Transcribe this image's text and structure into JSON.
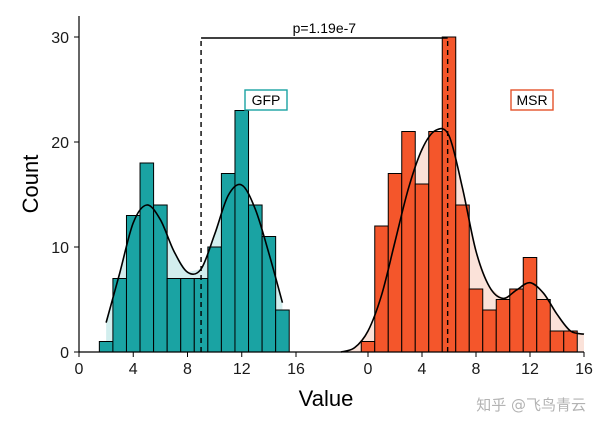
{
  "chart_data": {
    "type": "bar",
    "xlabel": "Value",
    "ylabel": "Count",
    "ylim": [
      0,
      32
    ],
    "yticks": [
      0,
      10,
      20,
      30
    ],
    "panels": [
      {
        "name": "GFP",
        "xlim": [
          0,
          17
        ],
        "xticks": [
          0,
          4,
          8,
          12,
          16
        ],
        "bin_width": 1,
        "bin_starts": [
          1.5,
          2.5,
          3.5,
          4.5,
          5.5,
          6.5,
          7.5,
          8.5,
          9.5,
          10.5,
          11.5,
          12.5,
          13.5,
          14.5
        ],
        "values": [
          1,
          7,
          13,
          18,
          14,
          7,
          7,
          7,
          10,
          17,
          23,
          14,
          11,
          4
        ],
        "density_curve": {
          "x": [
            2.0,
            3.0,
            4.0,
            5.0,
            6.0,
            7.0,
            8.0,
            9.0,
            10.0,
            11.0,
            12.0,
            13.0,
            14.0,
            15.0
          ],
          "y": [
            2.8,
            7.5,
            12.3,
            14.0,
            12.6,
            9.6,
            7.6,
            7.9,
            11.2,
            14.9,
            15.9,
            13.6,
            9.4,
            4.7
          ]
        },
        "fill_color": "#1aa3a3",
        "shade_color": "#d2eeee",
        "legend_color": "#1aa3a3",
        "mean_line": 9.0
      },
      {
        "name": "MSR",
        "xlim": [
          -2.5,
          16.5
        ],
        "xticks": [
          0,
          4,
          8,
          12,
          16
        ],
        "bin_width": 1,
        "bin_starts": [
          -0.5,
          0.5,
          1.5,
          2.5,
          3.5,
          4.5,
          5.5,
          6.5,
          7.5,
          8.5,
          9.5,
          10.5,
          11.5,
          12.5,
          13.5,
          14.5
        ],
        "values": [
          1,
          12,
          17,
          21,
          16,
          21,
          30,
          14,
          6,
          4,
          5,
          6,
          9,
          5,
          2,
          2
        ],
        "density_curve": {
          "x": [
            -2.0,
            -1.0,
            0.0,
            1.0,
            2.0,
            3.0,
            4.0,
            5.0,
            6.0,
            7.0,
            8.0,
            9.0,
            10.0,
            11.0,
            12.0,
            13.0,
            14.0,
            15.0,
            16.0
          ],
          "y": [
            0.0,
            0.4,
            2.0,
            5.4,
            10.5,
            15.6,
            19.3,
            21.1,
            20.6,
            15.6,
            9.6,
            6.2,
            5.1,
            5.9,
            6.6,
            5.6,
            3.6,
            2.0,
            1.7
          ]
        },
        "fill_color": "#f4562b",
        "shade_color": "#fbe2d9",
        "legend_color": "#e4532a",
        "mean_line": 5.9
      }
    ],
    "annotation": "p=1.19e-7",
    "watermark": "知乎 @飞鸟青云"
  }
}
